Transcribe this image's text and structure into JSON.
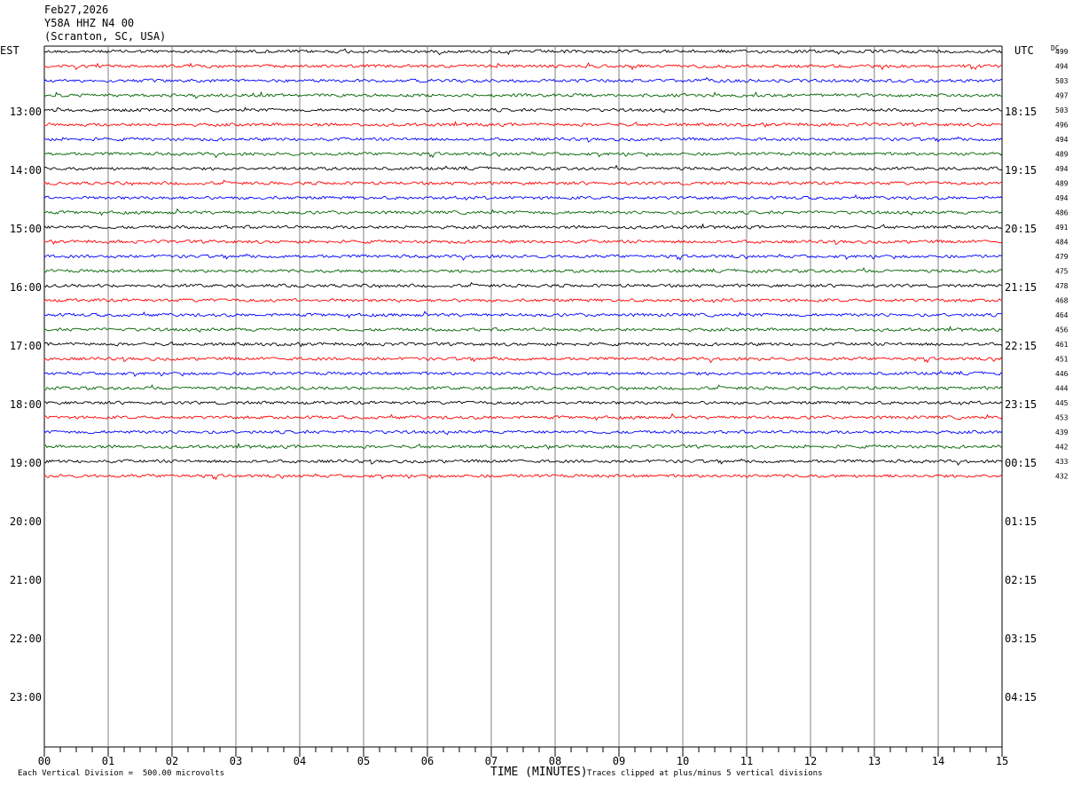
{
  "header": {
    "date": "Feb27,2026",
    "station": "Y58A HHZ N4 00",
    "location": "(Scranton, SC, USA)"
  },
  "labels": {
    "left_zone": "EST",
    "right_zone": "UTC",
    "dc": "DC"
  },
  "footer": {
    "division": "Each Vertical Division =  500.00 microvolts",
    "xlabel": "TIME (MINUTES)",
    "clip_note": "Traces clipped at plus/minus 5 vertical divisions"
  },
  "colors": {
    "trace_cycle": [
      "#000000",
      "#ff0000",
      "#0000ff",
      "#006400"
    ],
    "grid": "#808080"
  },
  "chart_data": {
    "type": "line",
    "title": "Y58A HHZ N4 00",
    "xlabel": "TIME (MINUTES)",
    "xlim": [
      0,
      15
    ],
    "x_ticks": [
      "00",
      "01",
      "02",
      "03",
      "04",
      "05",
      "06",
      "07",
      "08",
      "09",
      "10",
      "11",
      "12",
      "13",
      "14",
      "15"
    ],
    "left_time_labels": [
      "13:00",
      "14:00",
      "15:00",
      "16:00",
      "17:00",
      "18:00",
      "19:00",
      "20:00",
      "21:00",
      "22:00",
      "23:00"
    ],
    "right_time_labels": [
      "18:15",
      "19:15",
      "20:15",
      "21:15",
      "22:15",
      "23:15",
      "00:15",
      "01:15",
      "02:15",
      "03:15",
      "04:15"
    ],
    "traces_per_hour": 4,
    "trace_count": 30,
    "dc_offsets": [
      499,
      494,
      503,
      497,
      503,
      496,
      494,
      489,
      494,
      489,
      494,
      486,
      491,
      484,
      479,
      475,
      478,
      468,
      464,
      456,
      461,
      451,
      446,
      444,
      445,
      453,
      439,
      442,
      433,
      432
    ]
  }
}
